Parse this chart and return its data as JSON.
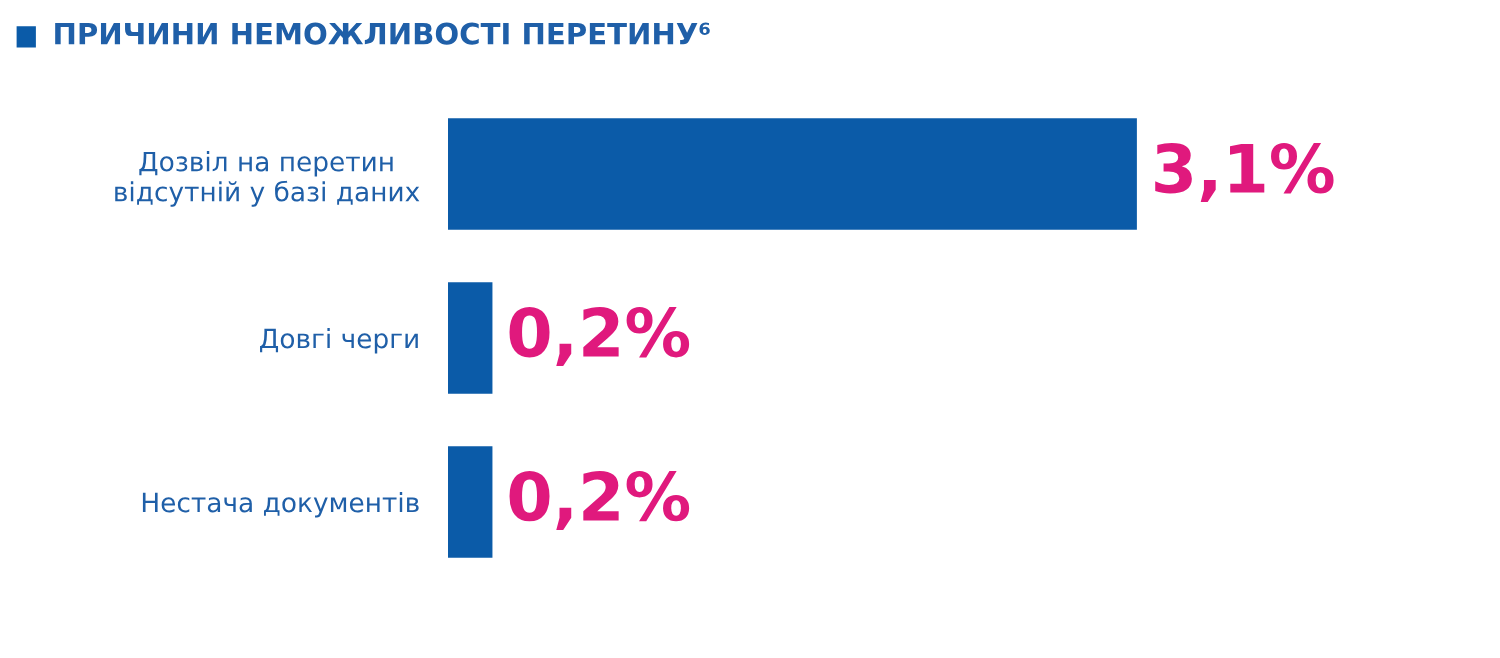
{
  "chart_data": {
    "type": "bar",
    "orientation": "horizontal",
    "title": "ПРИЧИНИ НЕМОЖЛИВОСТІ ПЕРЕТИНУ⁶",
    "categories": [
      "Дозвіл на перетин\nвідсутній у базі даних",
      "Довгі черги",
      "Нестача документів"
    ],
    "values": [
      3.1,
      0.2,
      0.2
    ],
    "color": "#0b5ba8",
    "value_labels": [
      "3,1%",
      "0,2%",
      "0,2%"
    ],
    "legend": false,
    "grid": false
  }
}
